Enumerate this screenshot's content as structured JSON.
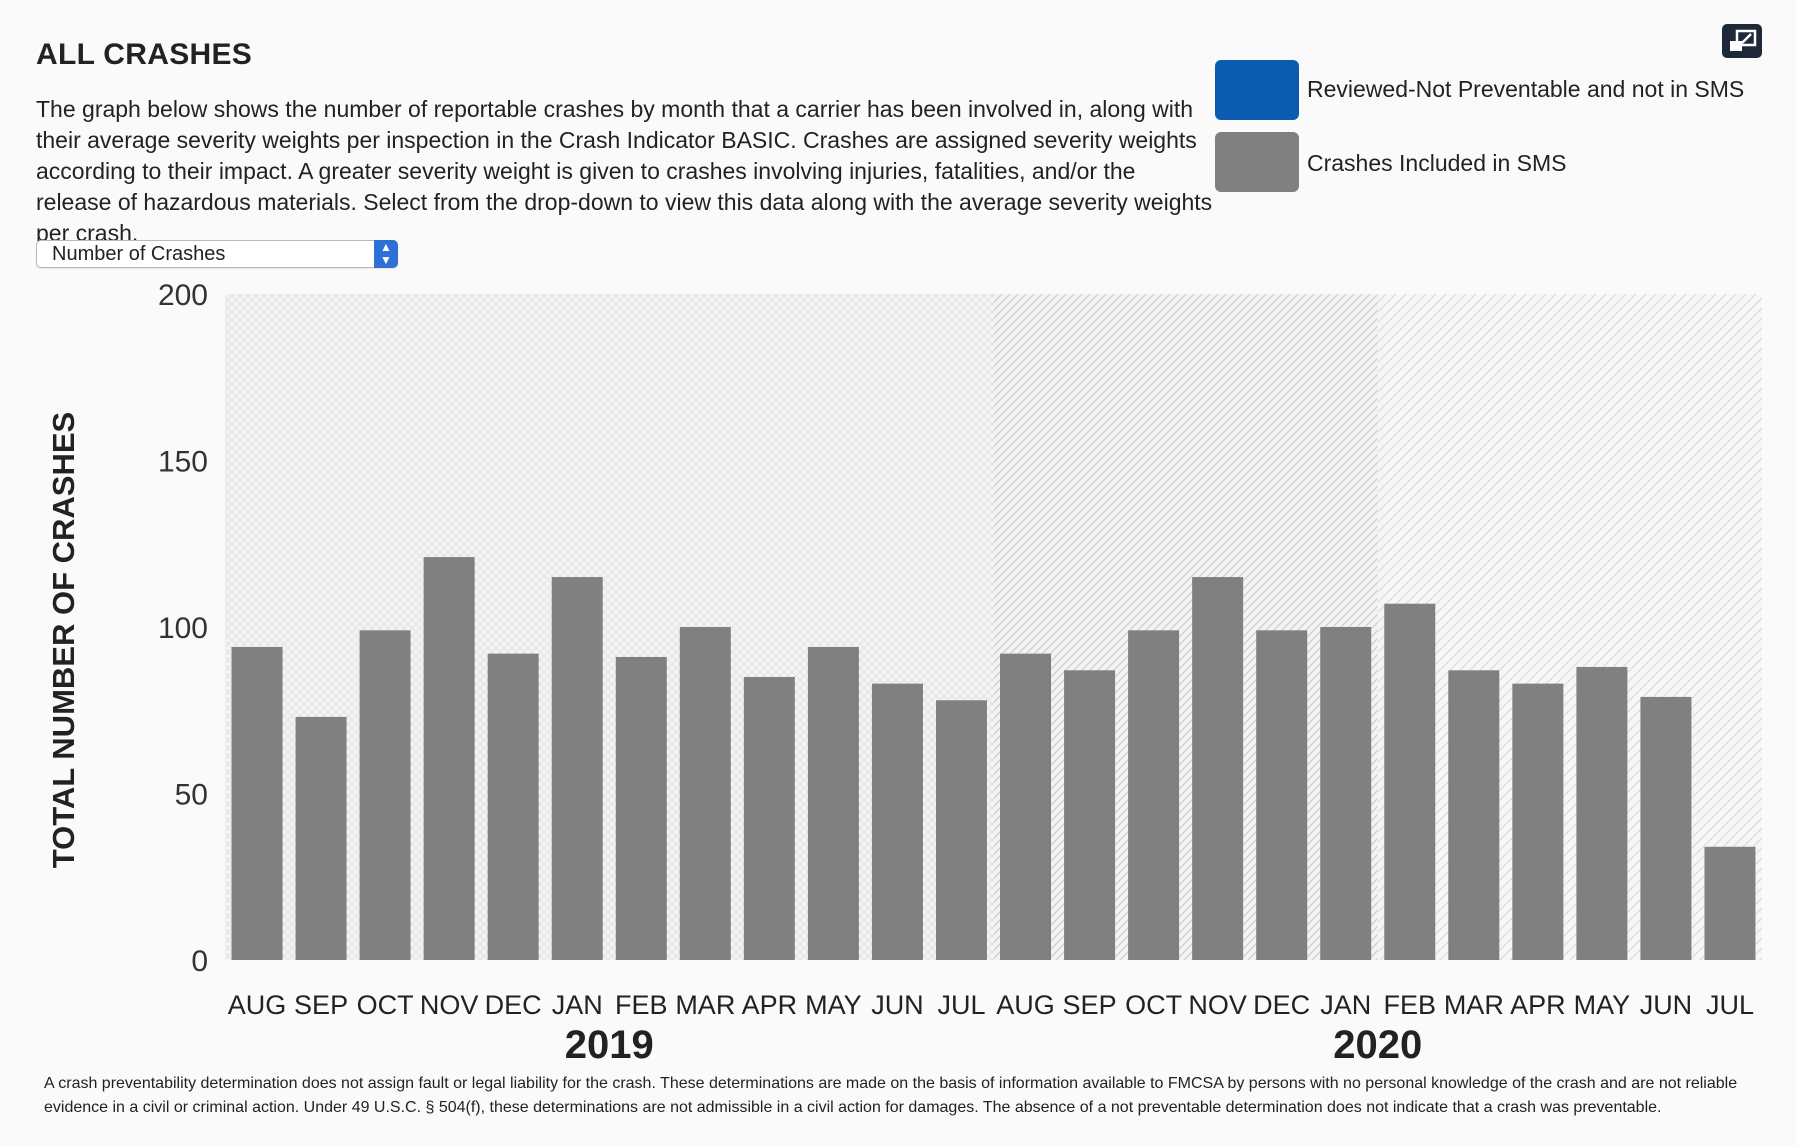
{
  "header": {
    "title": "ALL CRASHES",
    "description": "The graph below shows the number of reportable crashes by month that a carrier has been involved in, along with their average severity weights per inspection in the Crash Indicator BASIC. Crashes are assigned severity weights according to their impact. A greater severity weight is given to crashes involving injuries, fatalities, and/or the release of hazardous materials. Select from the drop-down to view this data along with the average severity weights per crash."
  },
  "dropdown": {
    "selected": "Number of Crashes"
  },
  "legend": {
    "items": [
      {
        "label": "Reviewed-Not Preventable and not in SMS",
        "color": "#0b5cb0"
      },
      {
        "label": "Crashes Included in SMS",
        "color": "#808080"
      }
    ]
  },
  "toolbar": {
    "expand_icon": "expand-icon"
  },
  "footnote": "A crash preventability determination does not assign fault or legal liability for the crash. These determinations are made on the basis of information available to FMCSA by persons with no personal knowledge of the crash and are not reliable evidence in a civil or criminal action. Under 49 U.S.C. § 504(f), these determinations are not admissible in a civil action for damages. The absence of a not preventable determination does not indicate that a crash was preventable.",
  "chart_data": {
    "type": "bar",
    "title": "",
    "xlabel": "",
    "ylabel": "TOTAL NUMBER OF CRASHES",
    "ylim": [
      0,
      200
    ],
    "yticks": [
      0,
      50,
      100,
      150,
      200
    ],
    "categories": [
      "AUG",
      "SEP",
      "OCT",
      "NOV",
      "DEC",
      "JAN",
      "FEB",
      "MAR",
      "APR",
      "MAY",
      "JUN",
      "JUL",
      "AUG",
      "SEP",
      "OCT",
      "NOV",
      "DEC",
      "JAN",
      "FEB",
      "MAR",
      "APR",
      "MAY",
      "JUN",
      "JUL"
    ],
    "year_groups": [
      {
        "label": "2019",
        "start": 0,
        "end": 11
      },
      {
        "label": "2020",
        "start": 12,
        "end": 23
      }
    ],
    "series": [
      {
        "name": "Crashes Included in SMS",
        "color": "#808080",
        "values": [
          94,
          73,
          99,
          121,
          92,
          115,
          91,
          100,
          85,
          94,
          83,
          78,
          92,
          87,
          99,
          115,
          99,
          100,
          107,
          87,
          83,
          88,
          79,
          34
        ]
      }
    ],
    "grid": false
  }
}
